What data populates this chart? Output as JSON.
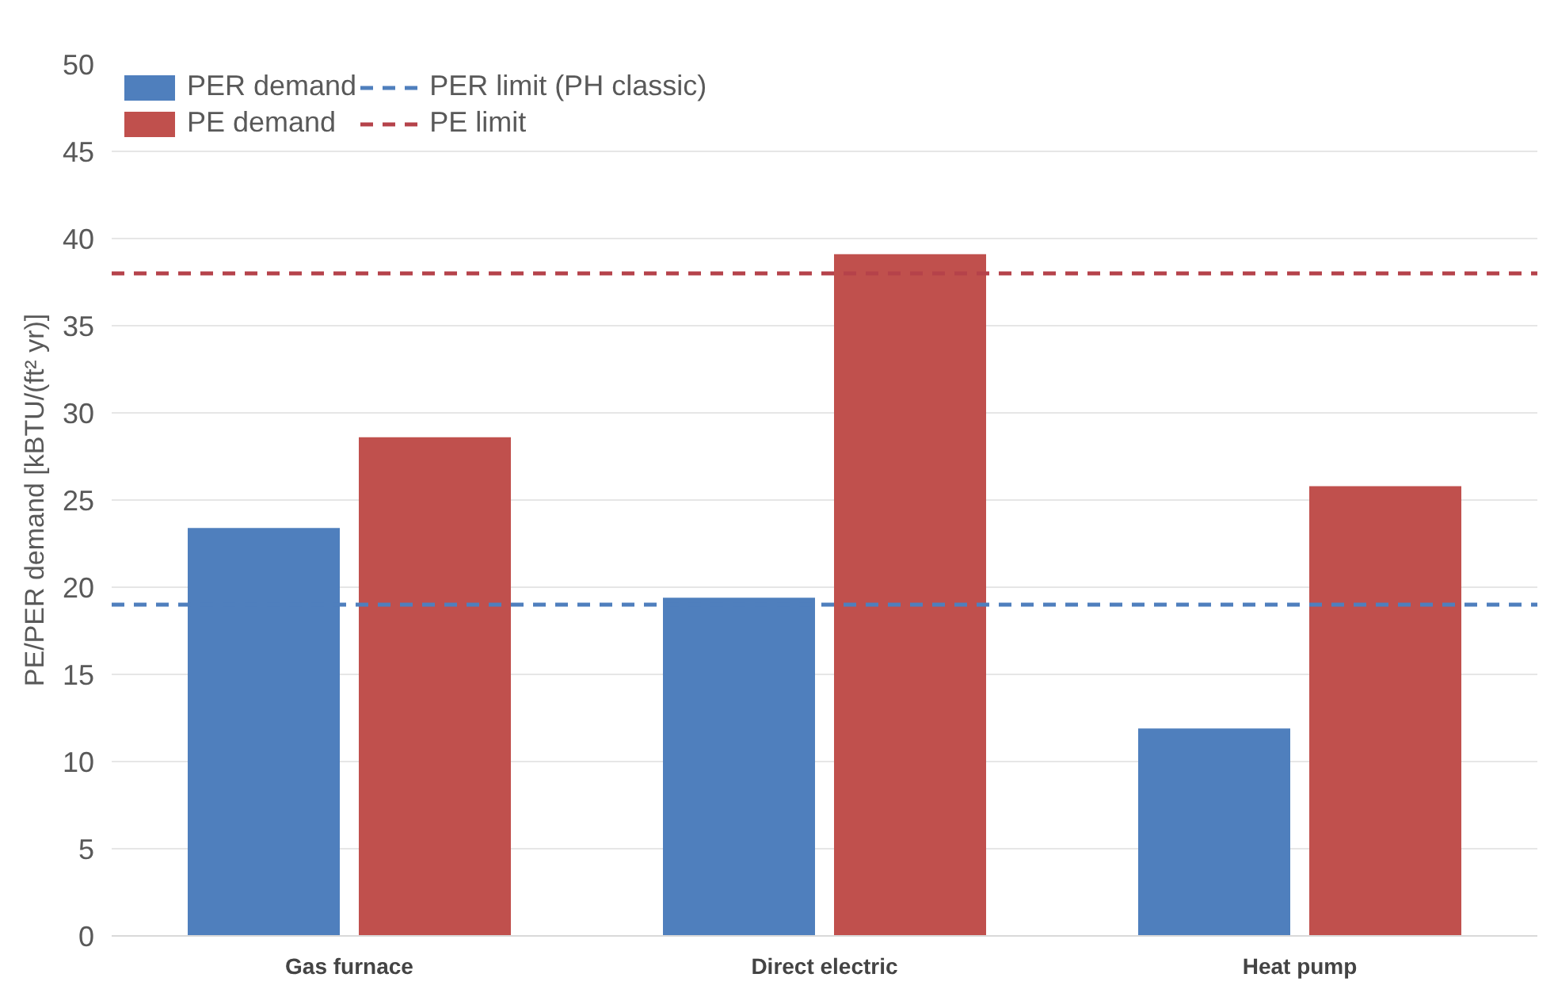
{
  "chart_data": {
    "type": "bar",
    "ylabel": "PE/PER demand [kBTU/(ft² yr)]",
    "categories": [
      "Gas furnace",
      "Direct electric",
      "Heat pump"
    ],
    "series": [
      {
        "name": "PER demand",
        "color": "#4f7fbd",
        "values": [
          23.4,
          19.4,
          11.9
        ]
      },
      {
        "name": "PE demand",
        "color": "#c0504d",
        "values": [
          28.6,
          39.1,
          25.8
        ]
      }
    ],
    "ref_lines": [
      {
        "axis": "y",
        "value": 19,
        "label": "PER limit (PH classic)",
        "color": "#4f7fbd",
        "line_style": "dashed"
      },
      {
        "axis": "y",
        "value": 38,
        "label": "PE limit",
        "color": "#b5424a",
        "line_style": "dashed"
      }
    ],
    "ylim": [
      0,
      50
    ],
    "yticks": [
      0,
      5,
      10,
      15,
      20,
      25,
      30,
      35,
      40,
      45,
      50
    ],
    "grid": "y",
    "legend": "top left"
  }
}
